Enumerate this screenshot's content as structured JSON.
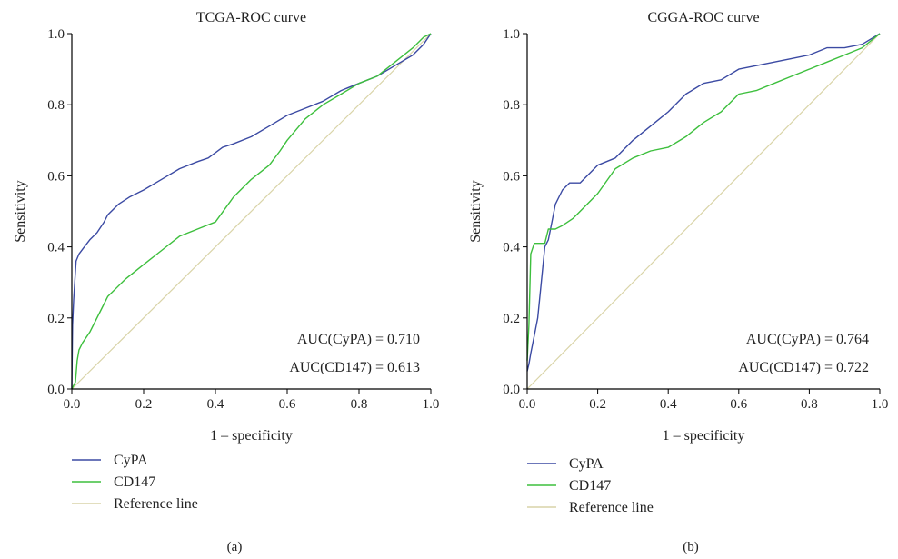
{
  "colors": {
    "cypa": "#3b4aa3",
    "cd147": "#3dbf3d",
    "reference": "#d9d4a8",
    "axis": "#000000"
  },
  "chart_data": [
    {
      "type": "line",
      "panel_label": "(a)",
      "title": "TCGA-ROC curve",
      "xlabel": "1 – specificity",
      "ylabel": "Sensitivity",
      "xlim": [
        0,
        1
      ],
      "ylim": [
        0,
        1
      ],
      "xticks": [
        "0.0",
        "0.2",
        "0.4",
        "0.6",
        "0.8",
        "1.0"
      ],
      "yticks": [
        "0.0",
        "0.2",
        "0.4",
        "0.6",
        "0.8",
        "1.0"
      ],
      "grid": false,
      "legend_position": "bottom-left, below plot",
      "annotations": [
        "AUC(CyPA) = 0.710",
        "AUC(CD147) = 0.613"
      ],
      "series": [
        {
          "name": "CyPA",
          "color": "#3b4aa3",
          "x": [
            0,
            0.002,
            0.005,
            0.008,
            0.012,
            0.02,
            0.035,
            0.05,
            0.07,
            0.09,
            0.1,
            0.13,
            0.16,
            0.2,
            0.25,
            0.3,
            0.35,
            0.38,
            0.42,
            0.45,
            0.5,
            0.55,
            0.6,
            0.65,
            0.7,
            0.75,
            0.8,
            0.85,
            0.9,
            0.95,
            0.98,
            1.0
          ],
          "y": [
            0,
            0.18,
            0.25,
            0.3,
            0.36,
            0.38,
            0.4,
            0.42,
            0.44,
            0.47,
            0.49,
            0.52,
            0.54,
            0.56,
            0.59,
            0.62,
            0.64,
            0.65,
            0.68,
            0.69,
            0.71,
            0.74,
            0.77,
            0.79,
            0.81,
            0.84,
            0.86,
            0.88,
            0.91,
            0.94,
            0.97,
            1.0
          ]
        },
        {
          "name": "CD147",
          "color": "#3dbf3d",
          "x": [
            0,
            0.005,
            0.01,
            0.015,
            0.02,
            0.03,
            0.05,
            0.08,
            0.1,
            0.15,
            0.2,
            0.25,
            0.3,
            0.35,
            0.4,
            0.45,
            0.5,
            0.55,
            0.58,
            0.6,
            0.65,
            0.7,
            0.75,
            0.8,
            0.85,
            0.9,
            0.95,
            0.98,
            1.0
          ],
          "y": [
            0,
            0.01,
            0.02,
            0.08,
            0.11,
            0.13,
            0.16,
            0.22,
            0.26,
            0.31,
            0.35,
            0.39,
            0.43,
            0.45,
            0.47,
            0.54,
            0.59,
            0.63,
            0.67,
            0.7,
            0.76,
            0.8,
            0.83,
            0.86,
            0.88,
            0.92,
            0.96,
            0.99,
            1.0
          ]
        },
        {
          "name": "Reference line",
          "color": "#d9d4a8",
          "x": [
            0,
            1
          ],
          "y": [
            0,
            1
          ]
        }
      ]
    },
    {
      "type": "line",
      "panel_label": "(b)",
      "title": "CGGA-ROC curve",
      "xlabel": "1 – specificity",
      "ylabel": "Sensitivity",
      "xlim": [
        0,
        1
      ],
      "ylim": [
        0,
        1
      ],
      "xticks": [
        "0.0",
        "0.2",
        "0.4",
        "0.6",
        "0.8",
        "1.0"
      ],
      "yticks": [
        "0.0",
        "0.2",
        "0.4",
        "0.6",
        "0.8",
        "1.0"
      ],
      "grid": false,
      "legend_position": "bottom-left, below plot",
      "annotations": [
        "AUC(CyPA) = 0.764",
        "AUC(CD147) = 0.722"
      ],
      "series": [
        {
          "name": "CyPA",
          "color": "#3b4aa3",
          "x": [
            0,
            0.005,
            0.01,
            0.02,
            0.03,
            0.04,
            0.05,
            0.06,
            0.07,
            0.08,
            0.1,
            0.12,
            0.15,
            0.2,
            0.25,
            0.3,
            0.35,
            0.4,
            0.45,
            0.5,
            0.55,
            0.6,
            0.65,
            0.7,
            0.75,
            0.8,
            0.85,
            0.9,
            0.95,
            1.0
          ],
          "y": [
            0.05,
            0.07,
            0.1,
            0.15,
            0.2,
            0.3,
            0.4,
            0.42,
            0.47,
            0.52,
            0.56,
            0.58,
            0.58,
            0.63,
            0.65,
            0.7,
            0.74,
            0.78,
            0.83,
            0.86,
            0.87,
            0.9,
            0.91,
            0.92,
            0.93,
            0.94,
            0.96,
            0.96,
            0.97,
            1.0
          ]
        },
        {
          "name": "CD147",
          "color": "#3dbf3d",
          "x": [
            0,
            0.005,
            0.01,
            0.02,
            0.03,
            0.05,
            0.06,
            0.08,
            0.1,
            0.13,
            0.15,
            0.2,
            0.25,
            0.3,
            0.35,
            0.4,
            0.45,
            0.5,
            0.55,
            0.6,
            0.65,
            0.7,
            0.75,
            0.8,
            0.85,
            0.9,
            0.95,
            1.0
          ],
          "y": [
            0.08,
            0.18,
            0.38,
            0.41,
            0.41,
            0.41,
            0.45,
            0.45,
            0.46,
            0.48,
            0.5,
            0.55,
            0.62,
            0.65,
            0.67,
            0.68,
            0.71,
            0.75,
            0.78,
            0.83,
            0.84,
            0.86,
            0.88,
            0.9,
            0.92,
            0.94,
            0.96,
            1.0
          ]
        },
        {
          "name": "Reference line",
          "color": "#d9d4a8",
          "x": [
            0,
            1
          ],
          "y": [
            0,
            1
          ]
        }
      ]
    }
  ]
}
